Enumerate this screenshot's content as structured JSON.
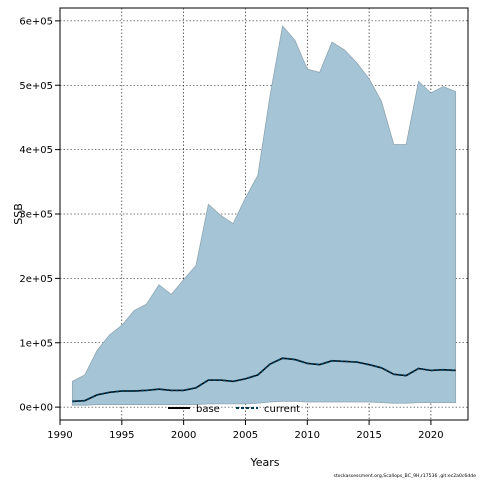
{
  "chart_data": {
    "type": "area",
    "xlabel": "Years",
    "ylabel": "SSB",
    "xlim": [
      1990,
      2023
    ],
    "ylim": [
      -20000,
      620000
    ],
    "x_ticks": [
      1990,
      1995,
      2000,
      2005,
      2010,
      2015,
      2020
    ],
    "x_tick_labels": [
      "1990",
      "1995",
      "2000",
      "2005",
      "2010",
      "2015",
      "2020"
    ],
    "y_ticks": [
      0,
      100000,
      200000,
      300000,
      400000,
      500000,
      600000
    ],
    "y_tick_labels": [
      "0e+00",
      "1e+05",
      "2e+05",
      "3e+05",
      "4e+05",
      "5e+05",
      "6e+05"
    ],
    "grid": true,
    "legend_position": "bottom",
    "colors": {
      "band_fill": "#a5c4d5",
      "band_edge": "#8fa6b3",
      "current_line": "#003c5a",
      "base_line": "#000000"
    },
    "years": [
      1991,
      1992,
      1993,
      1994,
      1995,
      1996,
      1997,
      1998,
      1999,
      2000,
      2001,
      2002,
      2003,
      2004,
      2005,
      2006,
      2007,
      2008,
      2009,
      2010,
      2011,
      2012,
      2013,
      2014,
      2015,
      2016,
      2017,
      2018,
      2019,
      2020,
      2021,
      2022
    ],
    "band": {
      "upper": [
        40000,
        50000,
        88000,
        112000,
        127000,
        150000,
        160000,
        190000,
        175000,
        198000,
        220000,
        315000,
        298000,
        285000,
        325000,
        360000,
        485000,
        592000,
        570000,
        525000,
        520000,
        567000,
        555000,
        535000,
        510000,
        475000,
        408000,
        408000,
        506000,
        488000,
        498000,
        490000
      ],
      "lower": [
        3000,
        3000,
        4000,
        4000,
        4000,
        4000,
        4000,
        4000,
        4000,
        4000,
        4000,
        5000,
        5000,
        5000,
        5000,
        6000,
        8000,
        9000,
        9000,
        8000,
        8000,
        8000,
        8000,
        8000,
        8000,
        7000,
        6000,
        6000,
        7000,
        7000,
        7000,
        7000
      ]
    },
    "series": [
      {
        "name": "base",
        "values": [
          9000,
          10000,
          19000,
          23000,
          25000,
          25000,
          26000,
          28000,
          26000,
          26000,
          30000,
          42000,
          42000,
          40000,
          44000,
          50000,
          67000,
          76000,
          74000,
          68000,
          66000,
          72000,
          71000,
          70000,
          66000,
          61000,
          51000,
          49000,
          60000,
          57000,
          58000,
          57000
        ]
      },
      {
        "name": "current",
        "values": [
          9000,
          10000,
          19000,
          23000,
          25000,
          25000,
          26000,
          28000,
          26000,
          26000,
          30000,
          42000,
          42000,
          40000,
          44000,
          50000,
          67000,
          76000,
          74000,
          68000,
          66000,
          72000,
          71000,
          70000,
          66000,
          61000,
          51000,
          49000,
          60000,
          57000,
          58000,
          57000
        ]
      }
    ],
    "footer_note": "stockassessment.org,Scallops_BC_9H,r17536 ,git:ec2a0c6dde"
  }
}
